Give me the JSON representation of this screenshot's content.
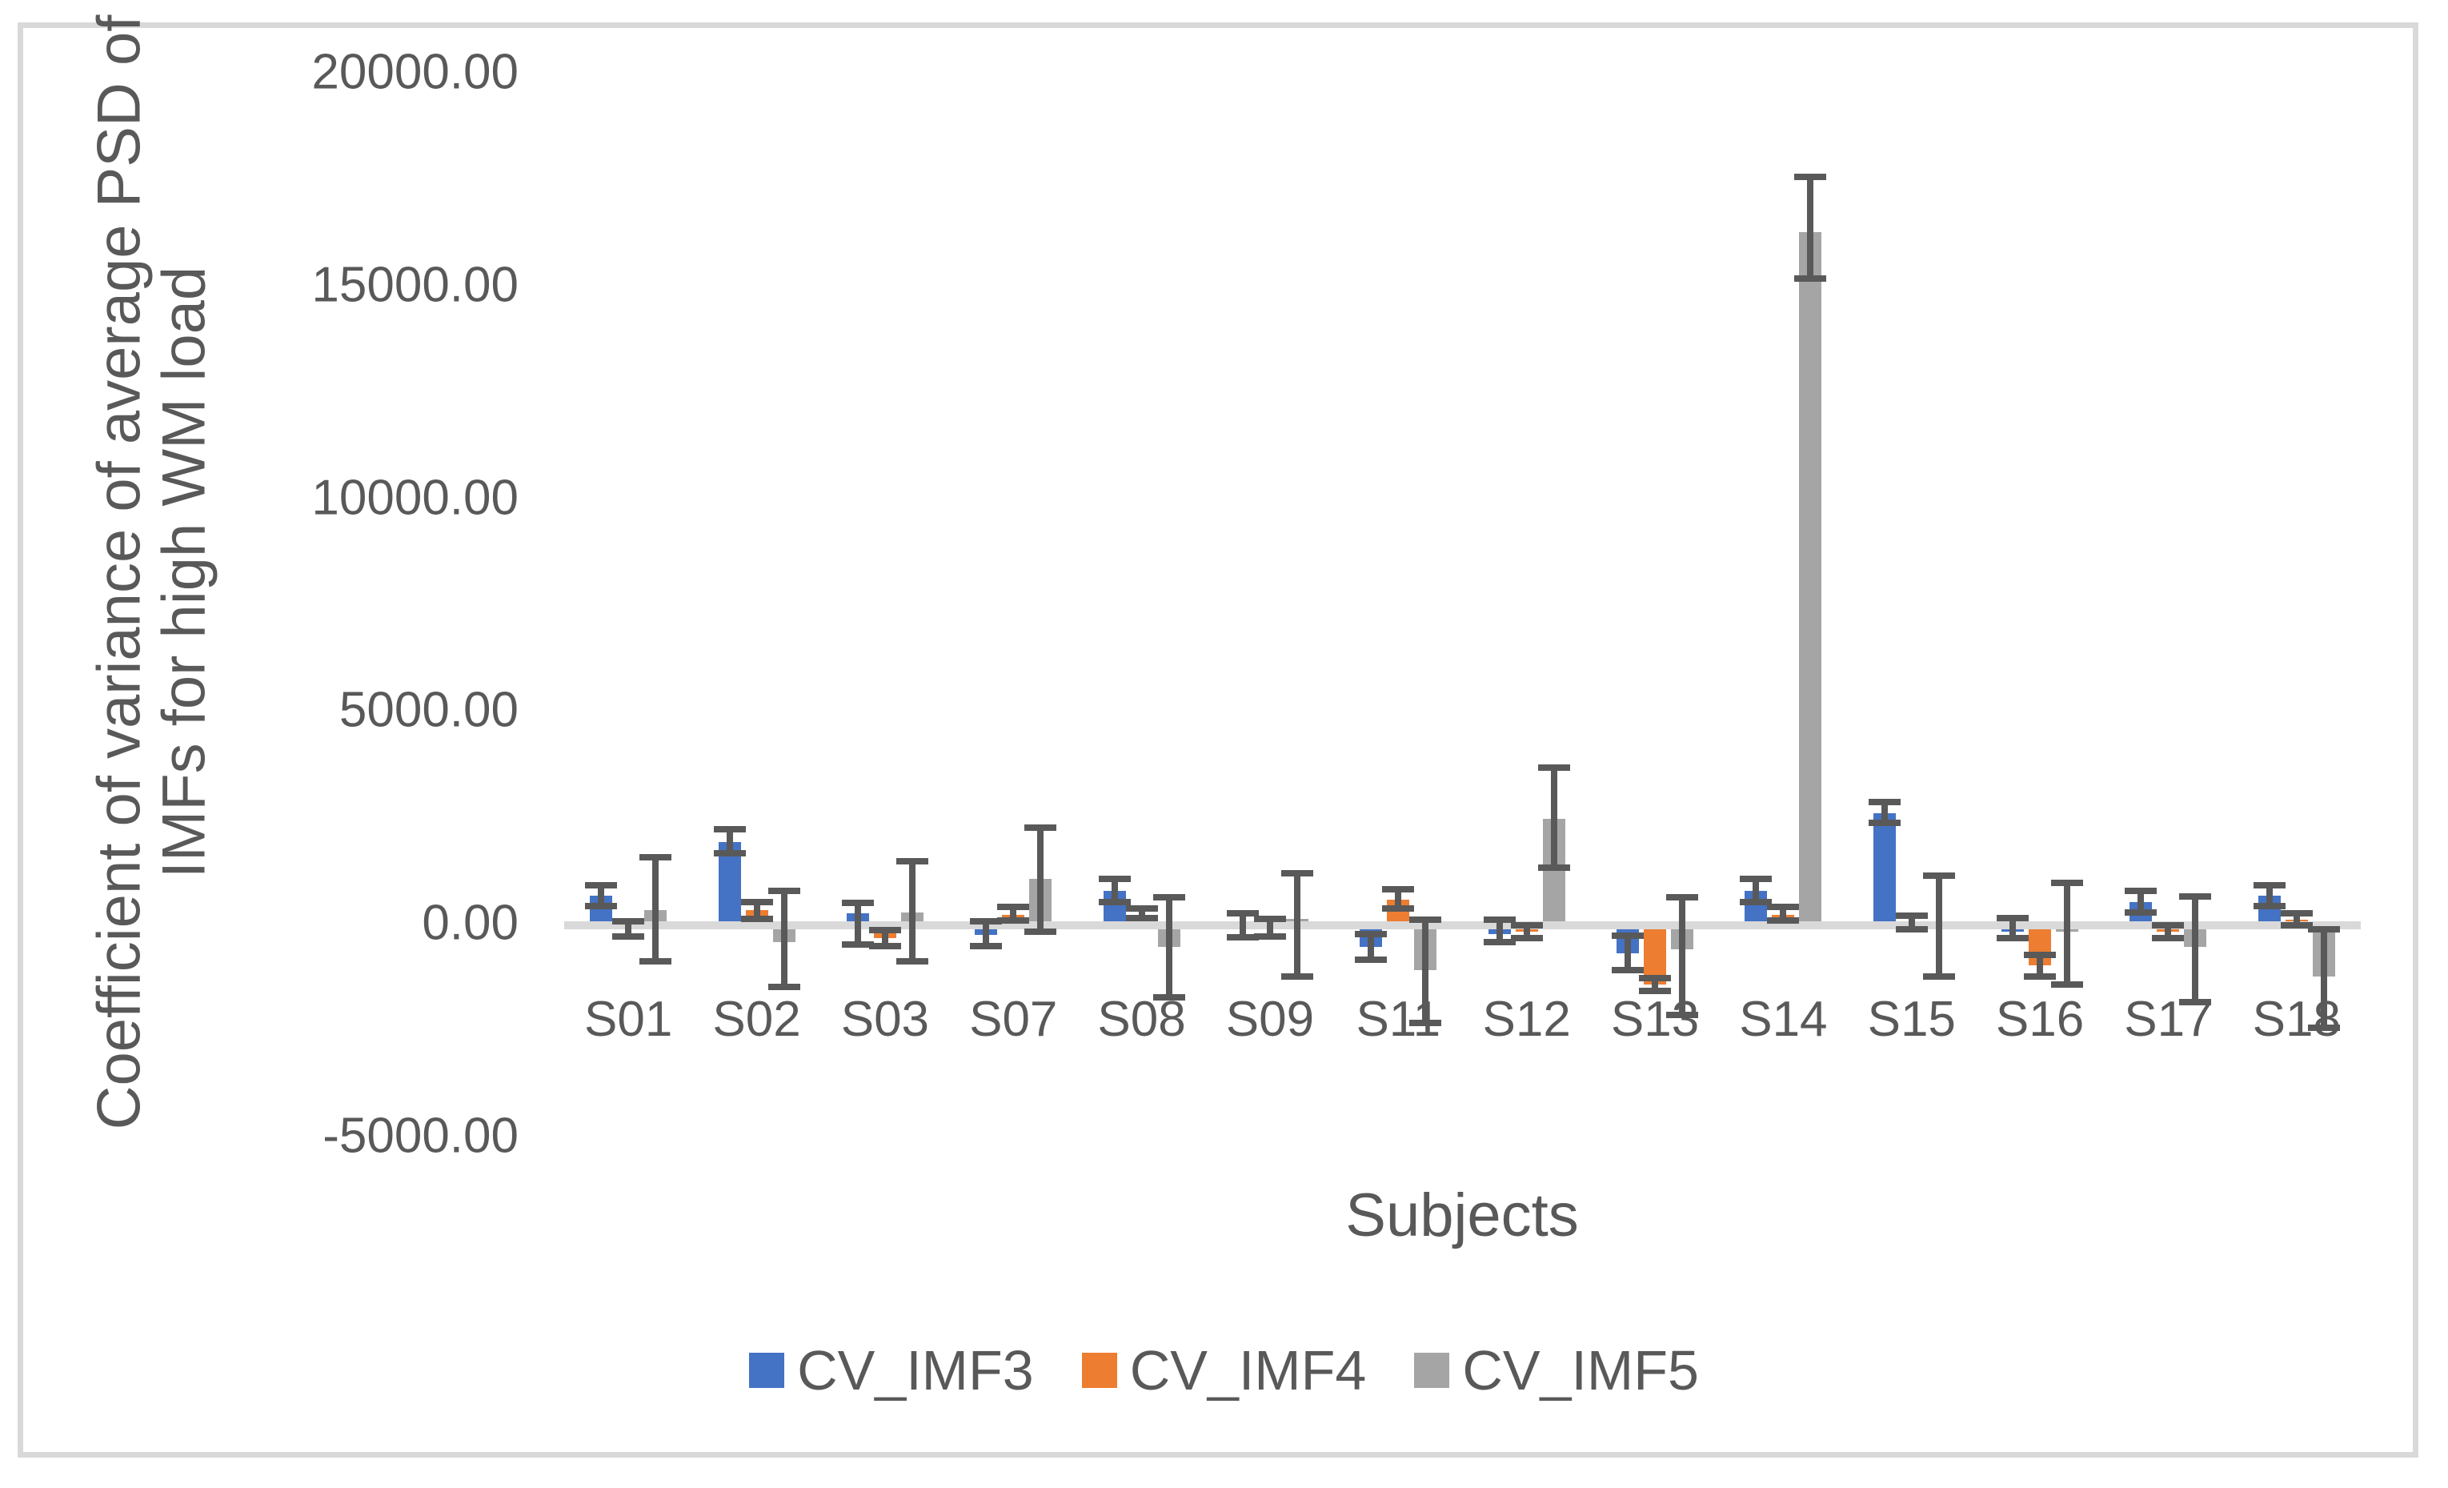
{
  "page": {
    "background": "#ffffff",
    "frame_border_color": "#d9d9d9"
  },
  "chart_data": {
    "type": "bar",
    "y_axis_title_lines": [
      "Coefficient of variance of average PSD of",
      "IMFs for high WM load"
    ],
    "x_axis_title": "Subjects",
    "categories": [
      "S01",
      "S02",
      "S03",
      "S07",
      "S08",
      "S09",
      "S11",
      "S12",
      "S13",
      "S14",
      "S15",
      "S16",
      "S17",
      "S18"
    ],
    "series": [
      {
        "name": "CV_IMF3",
        "color": "#4472C4",
        "values": [
          700,
          1950,
          280,
          -220,
          800,
          90,
          -500,
          -200,
          -650,
          800,
          2630,
          -150,
          550,
          700
        ],
        "err_lo": [
          450,
          1700,
          -450,
          -490,
          550,
          -290,
          -800,
          -400,
          -1050,
          550,
          2400,
          -310,
          300,
          450
        ],
        "err_hi": [
          950,
          2250,
          520,
          90,
          1100,
          280,
          -200,
          140,
          -250,
          1100,
          2900,
          160,
          800,
          950
        ]
      },
      {
        "name": "CV_IMF4",
        "color": "#ED7D31",
        "values": [
          -100,
          350,
          -300,
          250,
          230,
          50,
          600,
          -150,
          -1400,
          250,
          60,
          -950,
          -150,
          130
        ],
        "err_lo": [
          -270,
          150,
          -480,
          120,
          160,
          -260,
          390,
          -300,
          -1550,
          120,
          -100,
          -1200,
          -300,
          0
        ],
        "err_hi": [
          100,
          550,
          -110,
          430,
          390,
          150,
          840,
          0,
          -1250,
          440,
          230,
          -700,
          0,
          280
        ]
      },
      {
        "name": "CV_IMF5",
        "color": "#A5A5A5",
        "values": [
          350,
          -400,
          300,
          1100,
          -500,
          150,
          -1050,
          2500,
          -570,
          16300,
          100,
          -150,
          -500,
          -1200
        ],
        "err_lo": [
          -850,
          -1450,
          -850,
          -150,
          -1700,
          -1200,
          -2300,
          1350,
          -2100,
          15200,
          -1200,
          -1400,
          -1800,
          -2400
        ],
        "err_hi": [
          1600,
          800,
          1500,
          2300,
          650,
          1230,
          140,
          3700,
          650,
          17600,
          1170,
          1000,
          670,
          -100
        ]
      }
    ],
    "y_ticks": [
      {
        "label": "20000.00",
        "value": 20000
      },
      {
        "label": "15000.00",
        "value": 15000
      },
      {
        "label": "10000.00",
        "value": 10000
      },
      {
        "label": "5000.00",
        "value": 5000
      },
      {
        "label": "0.00",
        "value": 0
      },
      {
        "label": "-5000.00",
        "value": -5000
      }
    ],
    "ylim": [
      -5000,
      20000
    ],
    "grid": false,
    "legend_position": "bottom",
    "colors": {
      "error_bar": "#595959",
      "axis_line": "#d9d9d9",
      "text": "#595959"
    }
  }
}
